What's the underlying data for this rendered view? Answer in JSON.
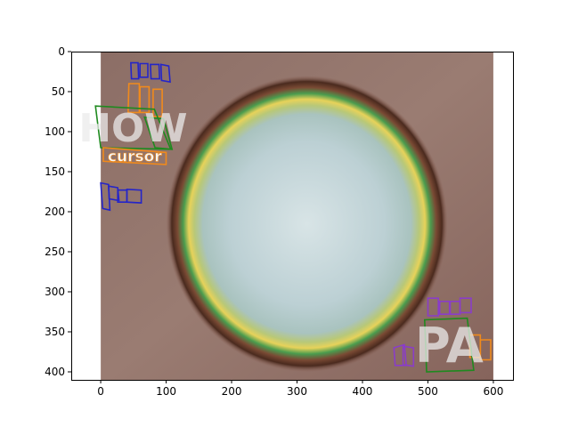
{
  "chart_data": {
    "type": "image",
    "xlim": [
      -45,
      630
    ],
    "ylim": [
      410,
      0
    ],
    "image_extent": {
      "x": [
        0,
        600
      ],
      "y": [
        0,
        410
      ]
    },
    "x_ticks": [
      0,
      100,
      200,
      300,
      400,
      500,
      600
    ],
    "y_ticks": [
      0,
      50,
      100,
      150,
      200,
      250,
      300,
      350,
      400
    ],
    "x_tick_labels": [
      "0",
      "100",
      "200",
      "300",
      "400",
      "500",
      "600"
    ],
    "y_tick_labels": [
      "0",
      "50",
      "100",
      "150",
      "200",
      "250",
      "300",
      "350",
      "400"
    ],
    "colors": {
      "green": "#1f8a1f",
      "blue": "#2525c8",
      "orange": "#f08a1c",
      "purple": "#8a3dc8"
    },
    "words": [
      {
        "text": "HOW",
        "color": "green",
        "polygon": [
          [
            -8,
            68
          ],
          [
            82,
            72
          ],
          [
            107,
            122
          ],
          [
            0,
            120
          ]
        ]
      },
      {
        "text": "cursor",
        "color": "orange",
        "polygon": [
          [
            4,
            120
          ],
          [
            100,
            126
          ],
          [
            100,
            141
          ],
          [
            4,
            137
          ]
        ]
      },
      {
        "text": "PA",
        "color": "green",
        "polygon": [
          [
            495,
            335
          ],
          [
            560,
            333
          ],
          [
            570,
            398
          ],
          [
            498,
            400
          ]
        ]
      }
    ],
    "boxes": [
      {
        "color": "blue",
        "polygon": [
          [
            46,
            14
          ],
          [
            57,
            14
          ],
          [
            58,
            34
          ],
          [
            47,
            34
          ]
        ]
      },
      {
        "color": "blue",
        "polygon": [
          [
            60,
            15
          ],
          [
            72,
            15
          ],
          [
            72,
            32
          ],
          [
            60,
            32
          ]
        ]
      },
      {
        "color": "blue",
        "polygon": [
          [
            76,
            16
          ],
          [
            89,
            16
          ],
          [
            90,
            34
          ],
          [
            77,
            34
          ]
        ]
      },
      {
        "color": "blue",
        "polygon": [
          [
            92,
            16
          ],
          [
            104,
            18
          ],
          [
            106,
            38
          ],
          [
            93,
            36
          ]
        ]
      },
      {
        "color": "orange",
        "polygon": [
          [
            43,
            40
          ],
          [
            59,
            40
          ],
          [
            59,
            76
          ],
          [
            42,
            76
          ]
        ]
      },
      {
        "color": "orange",
        "polygon": [
          [
            60,
            44
          ],
          [
            74,
            44
          ],
          [
            74,
            76
          ],
          [
            60,
            76
          ]
        ]
      },
      {
        "color": "orange",
        "polygon": [
          [
            80,
            47
          ],
          [
            94,
            47
          ],
          [
            94,
            81
          ],
          [
            80,
            81
          ]
        ]
      },
      {
        "color": "green",
        "polygon": [
          [
            67,
            82
          ],
          [
            96,
            84
          ],
          [
            109,
            122
          ],
          [
            83,
            120
          ]
        ]
      },
      {
        "color": "blue",
        "polygon": [
          [
            0,
            164
          ],
          [
            12,
            166
          ],
          [
            14,
            198
          ],
          [
            3,
            196
          ]
        ]
      },
      {
        "color": "blue",
        "polygon": [
          [
            12,
            168
          ],
          [
            26,
            170
          ],
          [
            28,
            186
          ],
          [
            13,
            184
          ]
        ]
      },
      {
        "color": "blue",
        "polygon": [
          [
            26,
            173
          ],
          [
            40,
            173
          ],
          [
            40,
            188
          ],
          [
            26,
            188
          ]
        ]
      },
      {
        "color": "blue",
        "polygon": [
          [
            40,
            172
          ],
          [
            62,
            173
          ],
          [
            62,
            189
          ],
          [
            40,
            188
          ]
        ]
      },
      {
        "color": "purple",
        "polygon": [
          [
            500,
            308
          ],
          [
            516,
            308
          ],
          [
            516,
            330
          ],
          [
            500,
            330
          ]
        ]
      },
      {
        "color": "purple",
        "polygon": [
          [
            518,
            312
          ],
          [
            533,
            312
          ],
          [
            533,
            328
          ],
          [
            518,
            328
          ]
        ]
      },
      {
        "color": "purple",
        "polygon": [
          [
            534,
            312
          ],
          [
            549,
            312
          ],
          [
            549,
            328
          ],
          [
            534,
            328
          ]
        ]
      },
      {
        "color": "purple",
        "polygon": [
          [
            549,
            308
          ],
          [
            566,
            308
          ],
          [
            566,
            326
          ],
          [
            549,
            326
          ]
        ]
      },
      {
        "color": "orange",
        "polygon": [
          [
            564,
            354
          ],
          [
            580,
            354
          ],
          [
            580,
            382
          ],
          [
            564,
            382
          ]
        ]
      },
      {
        "color": "orange",
        "polygon": [
          [
            580,
            360
          ],
          [
            596,
            360
          ],
          [
            596,
            385
          ],
          [
            580,
            385
          ]
        ]
      },
      {
        "color": "purple",
        "polygon": [
          [
            448,
            370
          ],
          [
            464,
            366
          ],
          [
            467,
            392
          ],
          [
            450,
            392
          ]
        ]
      },
      {
        "color": "purple",
        "polygon": [
          [
            462,
            368
          ],
          [
            478,
            370
          ],
          [
            478,
            393
          ],
          [
            462,
            391
          ]
        ]
      }
    ]
  }
}
